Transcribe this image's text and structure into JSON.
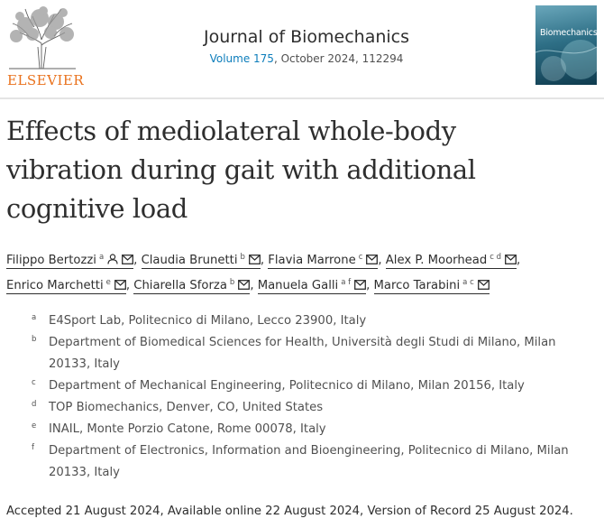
{
  "publisher": {
    "name": "ELSEVIER"
  },
  "journal": {
    "name": "Journal of Biomechanics",
    "volume_link": "Volume 175",
    "issue_info": ", October 2024, 112294"
  },
  "cover": {
    "title": "Biomechanics"
  },
  "article": {
    "title_lines": [
      "Effects of mediolateral whole-body",
      "vibration during gait with additional",
      "cognitive load"
    ]
  },
  "authors": [
    {
      "name": "Filippo Bertozzi",
      "sup": "a",
      "person_icon": true,
      "email_icon": true
    },
    {
      "name": "Claudia Brunetti",
      "sup": "b",
      "email_icon": true
    },
    {
      "name": "Flavia Marrone",
      "sup": "c",
      "email_icon": true
    },
    {
      "name": "Alex P. Moorhead",
      "sup": "c d",
      "email_icon": true
    },
    {
      "name": "Enrico Marchetti",
      "sup": "e",
      "email_icon": true
    },
    {
      "name": "Chiarella Sforza",
      "sup": "b",
      "email_icon": true
    },
    {
      "name": "Manuela Galli",
      "sup": "a f",
      "email_icon": true
    },
    {
      "name": "Marco Tarabini",
      "sup": "a c",
      "email_icon": true
    }
  ],
  "affiliations": [
    {
      "mark": "a",
      "text": "E4Sport Lab, Politecnico di Milano, Lecco 23900, Italy"
    },
    {
      "mark": "b",
      "text": "Department of Biomedical Sciences for Health, Università degli Studi di Milano, Milan",
      "text2": "20133, Italy"
    },
    {
      "mark": "c",
      "text": "Department of Mechanical Engineering, Politecnico di Milano, Milan 20156, Italy"
    },
    {
      "mark": "d",
      "text": "TOP Biomechanics, Denver, CO, United States"
    },
    {
      "mark": "e",
      "text": "INAIL, Monte Porzio Catone, Rome 00078, Italy"
    },
    {
      "mark": "f",
      "text": "Department of Electronics, Information and Bioengineering, Politecnico di Milano, Milan",
      "text2": "20133, Italy"
    }
  ],
  "dates": "Accepted 21 August 2024, Available online 22 August 2024, Version of Record 25 August 2024.",
  "colors": {
    "accent": "#0c7dbb",
    "elsevier_orange": "#e9711c",
    "text": "#2e2e2e"
  },
  "icons": [
    "person-icon",
    "email-icon",
    "elsevier-tree-logo"
  ]
}
